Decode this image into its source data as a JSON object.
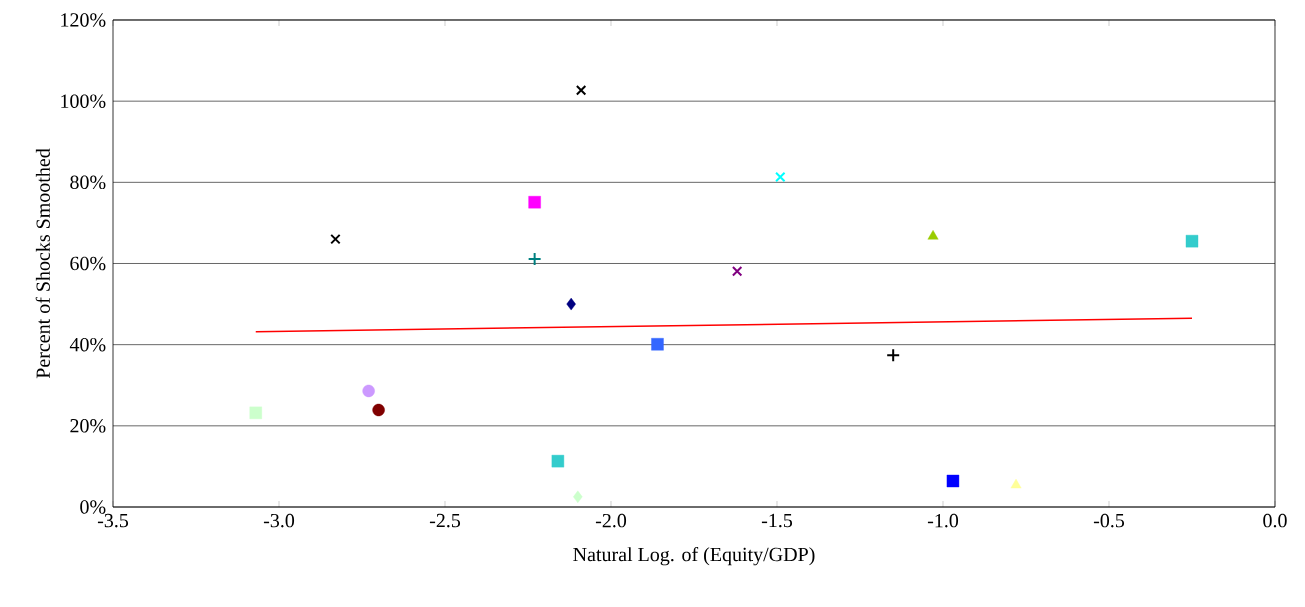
{
  "chart_data": {
    "type": "scatter",
    "xlabel": "Natural Log. of (Equity/GDP)",
    "ylabel": "Percent of Shocks Smoothed",
    "xlim": [
      -3.5,
      0
    ],
    "ylim": [
      0,
      120
    ],
    "xticks": [
      {
        "value": -3.5,
        "label": "-3.5"
      },
      {
        "value": -3.0,
        "label": "-3.0"
      },
      {
        "value": -2.5,
        "label": "-2.5"
      },
      {
        "value": -2.0,
        "label": "-2.0"
      },
      {
        "value": -1.5,
        "label": "-1.5"
      },
      {
        "value": -1.0,
        "label": "-1.0"
      },
      {
        "value": -0.5,
        "label": "-0.5"
      },
      {
        "value": 0,
        "label": "0.0"
      }
    ],
    "yticks": [
      {
        "value": 0,
        "label": "0%"
      },
      {
        "value": 20,
        "label": "20%"
      },
      {
        "value": 40,
        "label": "40%"
      },
      {
        "value": 60,
        "label": "60%"
      },
      {
        "value": 80,
        "label": "80%"
      },
      {
        "value": 100,
        "label": "100%"
      },
      {
        "value": 120,
        "label": "120%"
      }
    ],
    "grid": "y",
    "series": [
      {
        "color": "#ccffcc",
        "marker": "square",
        "x": [
          -3.07
        ],
        "values": [
          23.2
        ]
      },
      {
        "color": "#000000",
        "marker": "cross",
        "x": [
          -2.83
        ],
        "values": [
          66
        ]
      },
      {
        "color": "#cc99ff",
        "marker": "circle",
        "x": [
          -2.73
        ],
        "values": [
          28.6
        ]
      },
      {
        "color": "#800000",
        "marker": "circle",
        "x": [
          -2.7
        ],
        "values": [
          23.9
        ]
      },
      {
        "color": "#ff00ff",
        "marker": "square",
        "x": [
          -2.23
        ],
        "values": [
          75.1
        ]
      },
      {
        "color": "#008080",
        "marker": "plus",
        "x": [
          -2.23
        ],
        "values": [
          61.1
        ]
      },
      {
        "color": "#33cccc",
        "marker": "square",
        "x": [
          -2.16
        ],
        "values": [
          11.3
        ]
      },
      {
        "color": "#000080",
        "marker": "diamond",
        "x": [
          -2.12
        ],
        "values": [
          50
        ]
      },
      {
        "color": "#ccffcc",
        "marker": "diamond",
        "x": [
          -2.1
        ],
        "values": [
          2.5
        ]
      },
      {
        "color": "#000000",
        "marker": "cross",
        "x": [
          -2.09
        ],
        "values": [
          102.7
        ]
      },
      {
        "color": "#3366ff",
        "marker": "square",
        "x": [
          -1.86
        ],
        "values": [
          40.1
        ]
      },
      {
        "color": "#800080",
        "marker": "cross",
        "x": [
          -1.62
        ],
        "values": [
          58.1
        ]
      },
      {
        "color": "#00ffff",
        "marker": "cross",
        "x": [
          -1.49
        ],
        "values": [
          81.3
        ]
      },
      {
        "color": "#000000",
        "marker": "plus",
        "x": [
          -1.15
        ],
        "values": [
          37.4
        ]
      },
      {
        "color": "#99cc00",
        "marker": "triangle",
        "x": [
          -1.03
        ],
        "values": [
          66.7
        ]
      },
      {
        "color": "#0000ff",
        "marker": "square",
        "x": [
          -0.97
        ],
        "values": [
          6.4
        ]
      },
      {
        "color": "#ffff99",
        "marker": "triangle",
        "x": [
          -0.78
        ],
        "values": [
          5.4
        ]
      },
      {
        "color": "#33cccc",
        "marker": "square",
        "x": [
          -0.25
        ],
        "values": [
          65.5
        ]
      },
      {
        "type": "line",
        "color": "#ff0000",
        "marker": "none",
        "line_style": "solid",
        "x": [
          -3.07,
          -0.25
        ],
        "values": [
          43.2,
          46.5
        ]
      }
    ]
  }
}
